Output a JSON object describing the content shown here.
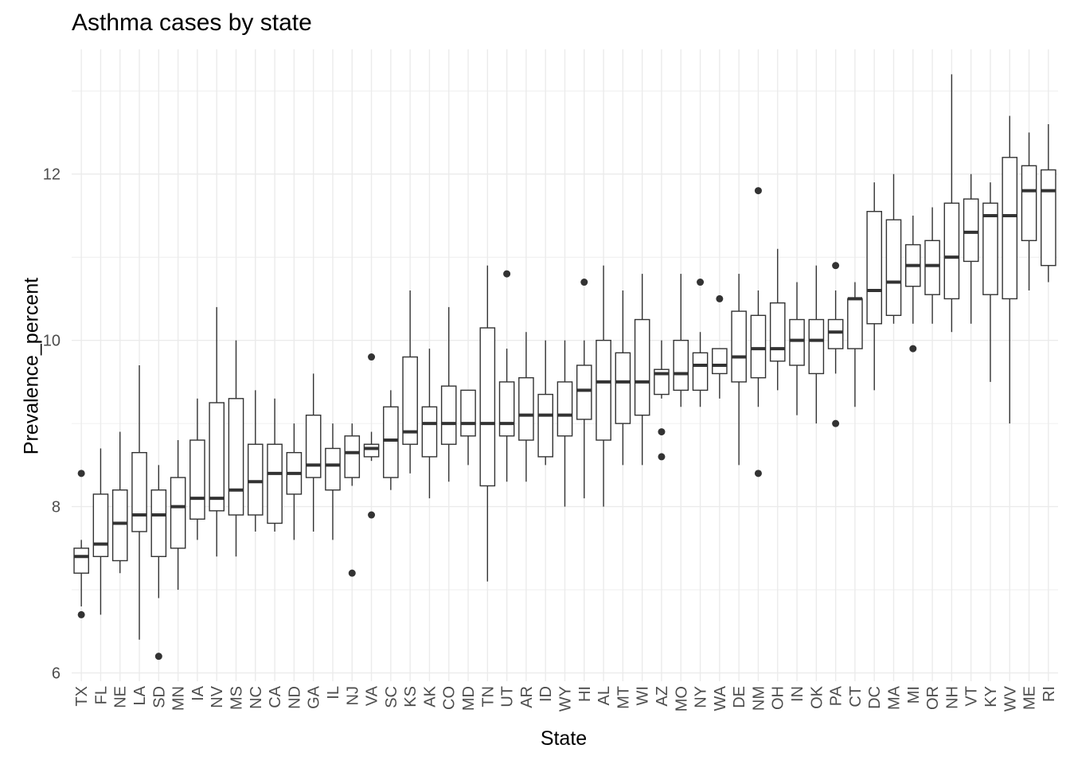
{
  "chart_data": {
    "type": "boxplot",
    "title": "Asthma cases by state",
    "xlabel": "State",
    "ylabel": "Prevalence_percent",
    "ylim": [
      5.9,
      13.5
    ],
    "y_ticks": [
      6,
      8,
      10,
      12
    ],
    "grid": true,
    "categories": [
      "TX",
      "FL",
      "NE",
      "LA",
      "SD",
      "MN",
      "IA",
      "NV",
      "MS",
      "NC",
      "CA",
      "ND",
      "GA",
      "IL",
      "NJ",
      "VA",
      "SC",
      "KS",
      "AK",
      "CO",
      "MD",
      "TN",
      "UT",
      "AR",
      "ID",
      "WY",
      "HI",
      "AL",
      "MT",
      "WI",
      "AZ",
      "MO",
      "NY",
      "WA",
      "DE",
      "NM",
      "OH",
      "IN",
      "OK",
      "PA",
      "CT",
      "DC",
      "MA",
      "MI",
      "OR",
      "NH",
      "VT",
      "KY",
      "WV",
      "ME",
      "RI"
    ],
    "boxes": [
      {
        "state": "TX",
        "lower": 6.8,
        "q1": 7.2,
        "median": 7.4,
        "q3": 7.5,
        "upper": 7.6,
        "outliers": [
          6.7,
          8.4
        ]
      },
      {
        "state": "FL",
        "lower": 6.7,
        "q1": 7.4,
        "median": 7.55,
        "q3": 8.15,
        "upper": 8.7,
        "outliers": []
      },
      {
        "state": "NE",
        "lower": 7.2,
        "q1": 7.35,
        "median": 7.8,
        "q3": 8.2,
        "upper": 8.9,
        "outliers": []
      },
      {
        "state": "LA",
        "lower": 6.4,
        "q1": 7.7,
        "median": 7.9,
        "q3": 8.65,
        "upper": 9.7,
        "outliers": []
      },
      {
        "state": "SD",
        "lower": 6.9,
        "q1": 7.4,
        "median": 7.9,
        "q3": 8.2,
        "upper": 8.5,
        "outliers": [
          6.2
        ]
      },
      {
        "state": "MN",
        "lower": 7.0,
        "q1": 7.5,
        "median": 8.0,
        "q3": 8.35,
        "upper": 8.8,
        "outliers": []
      },
      {
        "state": "IA",
        "lower": 7.6,
        "q1": 7.85,
        "median": 8.1,
        "q3": 8.8,
        "upper": 9.3,
        "outliers": []
      },
      {
        "state": "NV",
        "lower": 7.4,
        "q1": 7.95,
        "median": 8.1,
        "q3": 9.25,
        "upper": 10.4,
        "outliers": []
      },
      {
        "state": "MS",
        "lower": 7.4,
        "q1": 7.9,
        "median": 8.2,
        "q3": 9.3,
        "upper": 10.0,
        "outliers": []
      },
      {
        "state": "NC",
        "lower": 7.7,
        "q1": 7.9,
        "median": 8.3,
        "q3": 8.75,
        "upper": 9.4,
        "outliers": []
      },
      {
        "state": "CA",
        "lower": 7.7,
        "q1": 7.8,
        "median": 8.4,
        "q3": 8.75,
        "upper": 9.3,
        "outliers": []
      },
      {
        "state": "ND",
        "lower": 7.6,
        "q1": 8.15,
        "median": 8.4,
        "q3": 8.65,
        "upper": 9.0,
        "outliers": []
      },
      {
        "state": "GA",
        "lower": 7.7,
        "q1": 8.35,
        "median": 8.5,
        "q3": 9.1,
        "upper": 9.6,
        "outliers": []
      },
      {
        "state": "IL",
        "lower": 7.6,
        "q1": 8.2,
        "median": 8.5,
        "q3": 8.7,
        "upper": 9.0,
        "outliers": []
      },
      {
        "state": "NJ",
        "lower": 8.25,
        "q1": 8.35,
        "median": 8.65,
        "q3": 8.85,
        "upper": 9.0,
        "outliers": [
          7.2
        ]
      },
      {
        "state": "VA",
        "lower": 8.55,
        "q1": 8.6,
        "median": 8.7,
        "q3": 8.75,
        "upper": 8.9,
        "outliers": [
          7.9,
          9.8
        ]
      },
      {
        "state": "SC",
        "lower": 8.2,
        "q1": 8.35,
        "median": 8.8,
        "q3": 9.2,
        "upper": 9.4,
        "outliers": []
      },
      {
        "state": "KS",
        "lower": 8.4,
        "q1": 8.75,
        "median": 8.9,
        "q3": 9.8,
        "upper": 10.6,
        "outliers": []
      },
      {
        "state": "AK",
        "lower": 8.1,
        "q1": 8.6,
        "median": 9.0,
        "q3": 9.2,
        "upper": 9.9,
        "outliers": []
      },
      {
        "state": "CO",
        "lower": 8.3,
        "q1": 8.75,
        "median": 9.0,
        "q3": 9.45,
        "upper": 10.4,
        "outliers": []
      },
      {
        "state": "MD",
        "lower": 8.5,
        "q1": 8.85,
        "median": 9.0,
        "q3": 9.4,
        "upper": 9.4,
        "outliers": []
      },
      {
        "state": "TN",
        "lower": 7.1,
        "q1": 8.25,
        "median": 9.0,
        "q3": 10.15,
        "upper": 10.9,
        "outliers": []
      },
      {
        "state": "UT",
        "lower": 8.3,
        "q1": 8.85,
        "median": 9.0,
        "q3": 9.5,
        "upper": 9.9,
        "outliers": [
          10.8
        ]
      },
      {
        "state": "AR",
        "lower": 8.3,
        "q1": 8.8,
        "median": 9.1,
        "q3": 9.55,
        "upper": 10.1,
        "outliers": []
      },
      {
        "state": "ID",
        "lower": 8.5,
        "q1": 8.6,
        "median": 9.1,
        "q3": 9.35,
        "upper": 10.0,
        "outliers": []
      },
      {
        "state": "WY",
        "lower": 8.0,
        "q1": 8.85,
        "median": 9.1,
        "q3": 9.5,
        "upper": 10.0,
        "outliers": []
      },
      {
        "state": "HI",
        "lower": 8.1,
        "q1": 9.05,
        "median": 9.4,
        "q3": 9.7,
        "upper": 10.0,
        "outliers": [
          10.7
        ]
      },
      {
        "state": "AL",
        "lower": 8.0,
        "q1": 8.8,
        "median": 9.5,
        "q3": 10.0,
        "upper": 10.9,
        "outliers": []
      },
      {
        "state": "MT",
        "lower": 8.5,
        "q1": 9.0,
        "median": 9.5,
        "q3": 9.85,
        "upper": 10.6,
        "outliers": []
      },
      {
        "state": "WI",
        "lower": 8.5,
        "q1": 9.1,
        "median": 9.5,
        "q3": 10.25,
        "upper": 10.8,
        "outliers": []
      },
      {
        "state": "AZ",
        "lower": 9.3,
        "q1": 9.35,
        "median": 9.6,
        "q3": 9.65,
        "upper": 10.0,
        "outliers": [
          8.6,
          8.9
        ]
      },
      {
        "state": "MO",
        "lower": 9.2,
        "q1": 9.4,
        "median": 9.6,
        "q3": 10.0,
        "upper": 10.8,
        "outliers": []
      },
      {
        "state": "NY",
        "lower": 9.2,
        "q1": 9.4,
        "median": 9.7,
        "q3": 9.85,
        "upper": 10.1,
        "outliers": [
          10.7
        ]
      },
      {
        "state": "WA",
        "lower": 9.3,
        "q1": 9.6,
        "median": 9.7,
        "q3": 9.9,
        "upper": 9.9,
        "outliers": [
          10.5
        ]
      },
      {
        "state": "DE",
        "lower": 8.5,
        "q1": 9.5,
        "median": 9.8,
        "q3": 10.35,
        "upper": 10.8,
        "outliers": []
      },
      {
        "state": "NM",
        "lower": 9.2,
        "q1": 9.55,
        "median": 9.9,
        "q3": 10.3,
        "upper": 10.6,
        "outliers": [
          8.4,
          11.8
        ]
      },
      {
        "state": "OH",
        "lower": 9.4,
        "q1": 9.75,
        "median": 9.9,
        "q3": 10.45,
        "upper": 11.1,
        "outliers": []
      },
      {
        "state": "IN",
        "lower": 9.1,
        "q1": 9.7,
        "median": 10.0,
        "q3": 10.25,
        "upper": 10.7,
        "outliers": []
      },
      {
        "state": "OK",
        "lower": 9.0,
        "q1": 9.6,
        "median": 10.0,
        "q3": 10.25,
        "upper": 10.9,
        "outliers": []
      },
      {
        "state": "PA",
        "lower": 9.6,
        "q1": 9.9,
        "median": 10.1,
        "q3": 10.25,
        "upper": 10.6,
        "outliers": [
          9.0,
          10.9
        ]
      },
      {
        "state": "CT",
        "lower": 9.2,
        "q1": 9.9,
        "median": 10.5,
        "q3": 10.5,
        "upper": 10.7,
        "outliers": []
      },
      {
        "state": "DC",
        "lower": 9.4,
        "q1": 10.2,
        "median": 10.6,
        "q3": 11.55,
        "upper": 11.9,
        "outliers": []
      },
      {
        "state": "MA",
        "lower": 10.2,
        "q1": 10.3,
        "median": 10.7,
        "q3": 11.45,
        "upper": 12.0,
        "outliers": []
      },
      {
        "state": "MI",
        "lower": 10.2,
        "q1": 10.65,
        "median": 10.9,
        "q3": 11.15,
        "upper": 11.5,
        "outliers": [
          9.9
        ]
      },
      {
        "state": "OR",
        "lower": 10.2,
        "q1": 10.55,
        "median": 10.9,
        "q3": 11.2,
        "upper": 11.6,
        "outliers": []
      },
      {
        "state": "NH",
        "lower": 10.1,
        "q1": 10.5,
        "median": 11.0,
        "q3": 11.65,
        "upper": 13.2,
        "outliers": []
      },
      {
        "state": "VT",
        "lower": 10.2,
        "q1": 10.95,
        "median": 11.3,
        "q3": 11.7,
        "upper": 12.0,
        "outliers": []
      },
      {
        "state": "KY",
        "lower": 9.5,
        "q1": 10.55,
        "median": 11.5,
        "q3": 11.65,
        "upper": 11.9,
        "outliers": []
      },
      {
        "state": "WV",
        "lower": 9.0,
        "q1": 10.5,
        "median": 11.5,
        "q3": 12.2,
        "upper": 12.7,
        "outliers": []
      },
      {
        "state": "ME",
        "lower": 10.6,
        "q1": 11.2,
        "median": 11.8,
        "q3": 12.1,
        "upper": 12.5,
        "outliers": []
      },
      {
        "state": "RI",
        "lower": 10.7,
        "q1": 10.9,
        "median": 11.8,
        "q3": 12.05,
        "upper": 12.6,
        "outliers": []
      }
    ],
    "colors": {
      "box_stroke": "#333333",
      "box_fill": "#ffffff",
      "grid": "#ebebeb",
      "text": "#4d4d4d"
    }
  }
}
